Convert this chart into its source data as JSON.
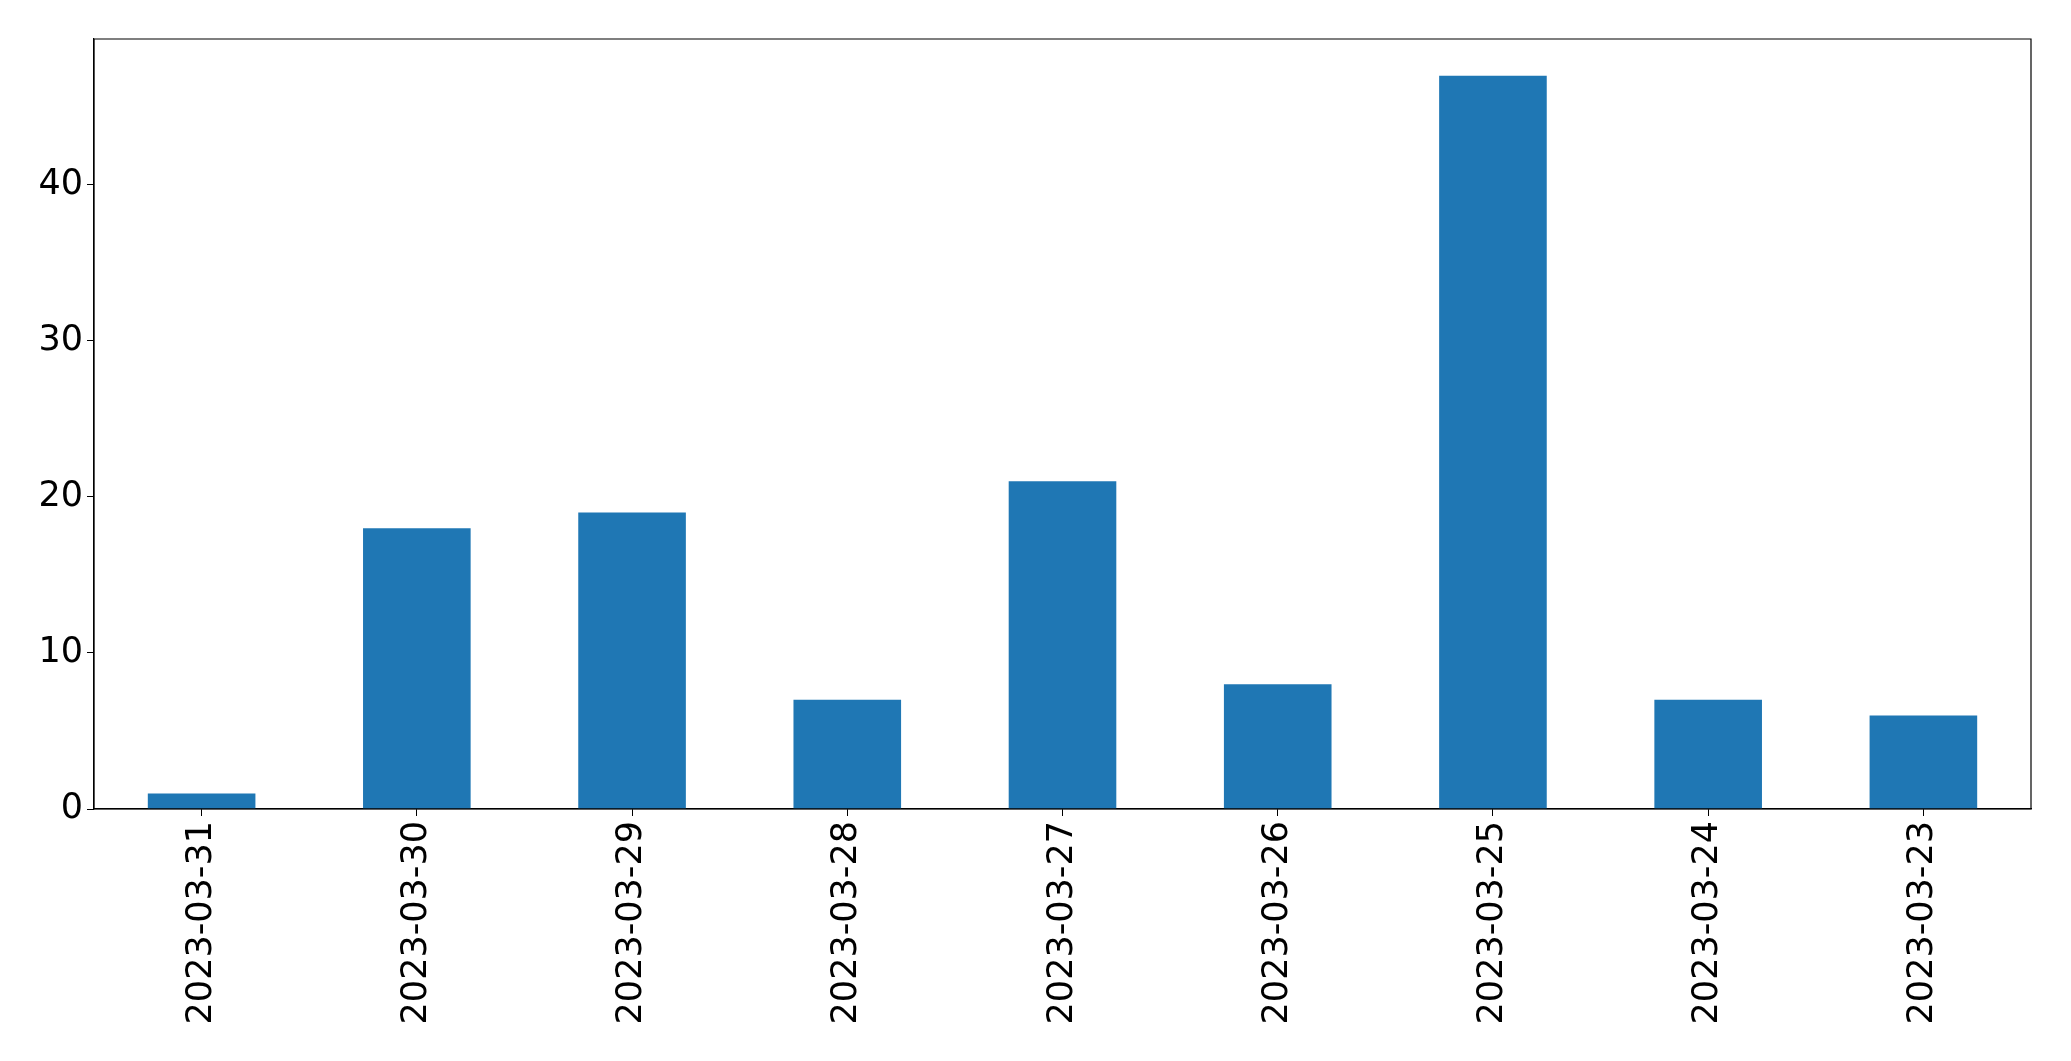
{
  "chart_data": {
    "type": "bar",
    "categories": [
      "2023-03-31",
      "2023-03-30",
      "2023-03-29",
      "2023-03-28",
      "2023-03-27",
      "2023-03-26",
      "2023-03-25",
      "2023-03-24",
      "2023-03-23"
    ],
    "values": [
      1,
      18,
      19,
      7,
      21,
      8,
      47,
      7,
      6
    ],
    "color": "#1f77b4",
    "ylim": [
      0,
      49.35
    ],
    "yticks": [
      0,
      10,
      20,
      30,
      40
    ]
  }
}
